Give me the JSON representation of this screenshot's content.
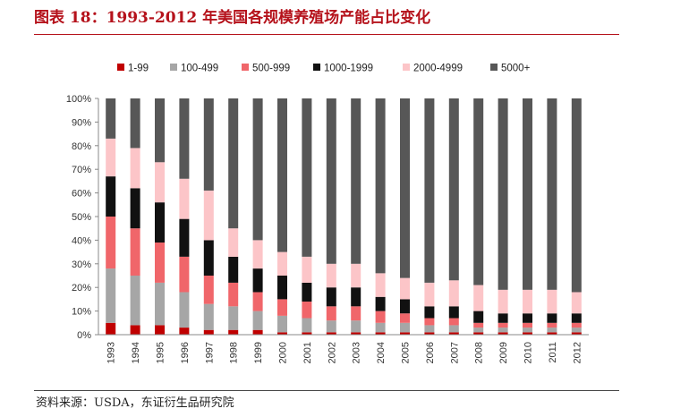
{
  "title": "图表 18：1993-2012 年美国各规模养殖场产能占比变化",
  "source": "资料来源：USDA，东证衍生品研究院",
  "chart_data": {
    "type": "bar",
    "stacked": true,
    "percent": true,
    "categories": [
      "1993",
      "1994",
      "1995",
      "1996",
      "1997",
      "1998",
      "1999",
      "2000",
      "2001",
      "2002",
      "2003",
      "2004",
      "2005",
      "2006",
      "2007",
      "2008",
      "2009",
      "2010",
      "2011",
      "2012"
    ],
    "ylim": [
      0,
      100
    ],
    "yticks": [
      "0%",
      "10%",
      "20%",
      "30%",
      "40%",
      "50%",
      "60%",
      "70%",
      "80%",
      "90%",
      "100%"
    ],
    "legend_position": "top",
    "grid": false,
    "series": [
      {
        "name": "1-99",
        "color": "#c00000",
        "values": [
          5,
          4,
          4,
          3,
          2,
          2,
          2,
          1,
          1,
          1,
          1,
          1,
          1,
          1,
          1,
          1,
          1,
          1,
          1,
          1
        ]
      },
      {
        "name": "100-499",
        "color": "#a6a6a6",
        "values": [
          23,
          21,
          18,
          15,
          11,
          10,
          8,
          7,
          6,
          5,
          5,
          4,
          4,
          3,
          3,
          2,
          2,
          2,
          2,
          2
        ]
      },
      {
        "name": "500-999",
        "color": "#f0666a",
        "values": [
          22,
          20,
          17,
          15,
          12,
          10,
          8,
          7,
          7,
          6,
          6,
          5,
          4,
          3,
          3,
          2,
          2,
          2,
          2,
          2
        ]
      },
      {
        "name": "1000-1999",
        "color": "#111111",
        "values": [
          17,
          17,
          17,
          16,
          15,
          11,
          10,
          10,
          8,
          8,
          8,
          6,
          6,
          5,
          5,
          5,
          4,
          4,
          4,
          4
        ]
      },
      {
        "name": "2000-4999",
        "color": "#fcc5c8",
        "values": [
          16,
          17,
          17,
          17,
          21,
          12,
          12,
          10,
          11,
          10,
          10,
          10,
          9,
          10,
          11,
          11,
          10,
          10,
          10,
          9
        ]
      },
      {
        "name": "5000+",
        "color": "#575757",
        "values": [
          17,
          21,
          27,
          34,
          39,
          55,
          60,
          65,
          67,
          70,
          70,
          74,
          76,
          78,
          77,
          79,
          81,
          81,
          81,
          82
        ]
      }
    ]
  }
}
